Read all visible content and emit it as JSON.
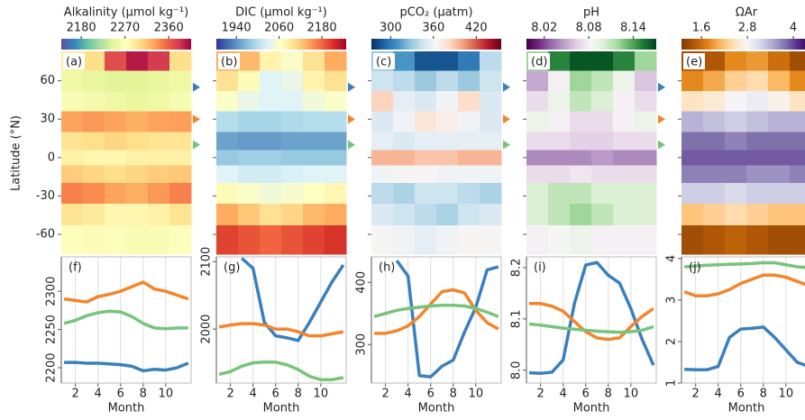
{
  "y_label": "Latitude (°N)",
  "x_label": "Month",
  "markers": [
    {
      "color": "#3a80bd",
      "value": 55
    },
    {
      "color": "#f4852a",
      "value": 30
    },
    {
      "color": "#78c47b",
      "value": 10
    }
  ],
  "chart_data": [
    {
      "type": "heatmap",
      "panel": "(a)",
      "title": "Alkalinity (μmol kg⁻¹)",
      "zlim": [
        2139,
        2406
      ],
      "zticks": [
        2180,
        2270,
        2360
      ],
      "colormap": [
        "#5e4fa2",
        "#3288bd",
        "#66c2a5",
        "#abdda4",
        "#e6f598",
        "#ffffbf",
        "#fee08b",
        "#fdae61",
        "#f46d43",
        "#d53e4f",
        "#9e0142"
      ],
      "x": [
        1,
        3,
        5,
        7,
        9,
        11
      ],
      "xlim": [
        0,
        12
      ],
      "y": [
        76,
        60,
        44,
        28,
        12,
        0,
        -12,
        -28,
        -44,
        -62
      ],
      "ylim": [
        -75.5,
        83
      ],
      "yticks": [
        60,
        30,
        0,
        -30,
        -60
      ],
      "z": [
        [
          2290,
          2300,
          2370,
          2395,
          2380,
          2300
        ],
        [
          2255,
          2250,
          2245,
          2245,
          2250,
          2255
        ],
        [
          2265,
          2260,
          2255,
          2250,
          2255,
          2262
        ],
        [
          2330,
          2335,
          2330,
          2325,
          2330,
          2332
        ],
        [
          2295,
          2300,
          2305,
          2300,
          2295,
          2295
        ],
        [
          2285,
          2280,
          2280,
          2285,
          2285,
          2285
        ],
        [
          2310,
          2305,
          2300,
          2305,
          2310,
          2312
        ],
        [
          2345,
          2340,
          2330,
          2325,
          2335,
          2345
        ],
        [
          2295,
          2290,
          2280,
          2280,
          2285,
          2295
        ],
        [
          2270,
          2275,
          2270,
          2265,
          2265,
          2270
        ]
      ]
    },
    {
      "type": "heatmap",
      "panel": "(b)",
      "title": "DIC (μmol kg⁻¹)",
      "zlim": [
        1884,
        2248
      ],
      "zticks": [
        1940,
        2060,
        2180
      ],
      "colormap": [
        "#313695",
        "#4575b4",
        "#74add1",
        "#abd9e9",
        "#e0f3f8",
        "#ffffbf",
        "#fee090",
        "#fdae61",
        "#f46d43",
        "#d73027",
        "#a50026"
      ],
      "x": [
        1,
        3,
        5,
        7,
        9,
        11
      ],
      "xlim": [
        0,
        12
      ],
      "y": [
        76,
        60,
        44,
        28,
        12,
        0,
        -12,
        -28,
        -44,
        -62
      ],
      "ylim": [
        -75.5,
        83
      ],
      "yticks": [
        60,
        30,
        0,
        -30,
        -60
      ],
      "z": [
        [
          2140,
          2130,
          2080,
          2060,
          2100,
          2140
        ],
        [
          2100,
          2070,
          2030,
          2040,
          2080,
          2100
        ],
        [
          2060,
          2040,
          2030,
          2030,
          2050,
          2060
        ],
        [
          2000,
          1990,
          1990,
          1995,
          2000,
          2000
        ],
        [
          1950,
          1945,
          1945,
          1950,
          1950,
          1950
        ],
        [
          1980,
          1985,
          1985,
          1980,
          1980,
          1980
        ],
        [
          2030,
          2020,
          2020,
          2025,
          2030,
          2030
        ],
        [
          2070,
          2060,
          2050,
          2055,
          2065,
          2075
        ],
        [
          2140,
          2120,
          2100,
          2110,
          2130,
          2140
        ],
        [
          2200,
          2190,
          2180,
          2190,
          2200,
          2210
        ]
      ]
    },
    {
      "type": "heatmap",
      "panel": "(c)",
      "title": "pCO₂ (μatm)",
      "zlim": [
        273,
        455
      ],
      "zticks": [
        300,
        360,
        420
      ],
      "colormap": [
        "#053061",
        "#2166ac",
        "#4393c3",
        "#92c5de",
        "#d1e5f0",
        "#f7f7f7",
        "#fddbc7",
        "#f4a582",
        "#d6604d",
        "#b2182b",
        "#67001f"
      ],
      "x": [
        1,
        3,
        5,
        7,
        9,
        11
      ],
      "xlim": [
        0,
        12
      ],
      "y": [
        76,
        60,
        44,
        28,
        12,
        0,
        -12,
        -28,
        -44,
        -62
      ],
      "ylim": [
        -75.5,
        83
      ],
      "yticks": [
        60,
        30,
        0,
        -30,
        -60
      ],
      "z": [
        [
          330,
          310,
          285,
          285,
          300,
          340
        ],
        [
          345,
          340,
          330,
          340,
          330,
          345
        ],
        [
          385,
          355,
          350,
          360,
          380,
          350
        ],
        [
          350,
          360,
          375,
          370,
          360,
          350
        ],
        [
          355,
          350,
          355,
          355,
          355,
          355
        ],
        [
          395,
          395,
          390,
          390,
          395,
          395
        ],
        [
          360,
          365,
          365,
          360,
          360,
          360
        ],
        [
          340,
          335,
          345,
          345,
          340,
          335
        ],
        [
          350,
          345,
          340,
          335,
          345,
          350
        ],
        [
          365,
          360,
          355,
          360,
          365,
          365
        ]
      ]
    },
    {
      "type": "heatmap",
      "panel": "(d)",
      "title": "pH",
      "zlim": [
        7.996,
        8.171
      ],
      "zticks": [
        8.02,
        8.08,
        8.14
      ],
      "colormap": [
        "#40004b",
        "#762a83",
        "#9970ab",
        "#c2a5cf",
        "#e7d4e8",
        "#f7f7f7",
        "#d9f0d3",
        "#a6dba0",
        "#5aae61",
        "#1b7837",
        "#00441b"
      ],
      "x": [
        1,
        3,
        5,
        7,
        9,
        11
      ],
      "xlim": [
        0,
        12
      ],
      "y": [
        76,
        60,
        44,
        28,
        12,
        0,
        -12,
        -28,
        -44,
        -62
      ],
      "ylim": [
        -75.5,
        83
      ],
      "yticks": [
        60,
        30,
        0,
        -30,
        -60
      ],
      "z": [
        [
          8.12,
          8.15,
          8.165,
          8.165,
          8.15,
          8.12
        ],
        [
          8.05,
          8.08,
          8.12,
          8.11,
          8.09,
          8.06
        ],
        [
          8.07,
          8.09,
          8.11,
          8.1,
          8.08,
          8.07
        ],
        [
          8.09,
          8.08,
          8.07,
          8.07,
          8.08,
          8.09
        ],
        [
          8.07,
          8.07,
          8.065,
          8.065,
          8.07,
          8.07
        ],
        [
          8.04,
          8.04,
          8.04,
          8.045,
          8.04,
          8.04
        ],
        [
          8.07,
          8.07,
          8.075,
          8.07,
          8.07,
          8.07
        ],
        [
          8.1,
          8.11,
          8.11,
          8.1,
          8.1,
          8.1
        ],
        [
          8.1,
          8.11,
          8.12,
          8.11,
          8.1,
          8.1
        ],
        [
          8.08,
          8.085,
          8.09,
          8.08,
          8.08,
          8.08
        ]
      ]
    },
    {
      "type": "heatmap",
      "panel": "(e)",
      "title": "ΩAr",
      "zlim": [
        1.08,
        4.47
      ],
      "zticks": [
        1.6,
        2.8,
        4.0
      ],
      "colormap": [
        "#7f3b08",
        "#b35806",
        "#e08214",
        "#fdb863",
        "#fee0b6",
        "#f7f7f7",
        "#d8daeb",
        "#b2abd2",
        "#8073ac",
        "#542788",
        "#2d004b"
      ],
      "x": [
        1,
        3,
        5,
        7,
        9,
        11
      ],
      "xlim": [
        0,
        12
      ],
      "y": [
        76,
        60,
        44,
        28,
        12,
        0,
        -12,
        -28,
        -44,
        -62
      ],
      "ylim": [
        -75.5,
        83
      ],
      "yticks": [
        60,
        30,
        0,
        -30,
        -60
      ],
      "z": [
        [
          1.3,
          1.4,
          1.8,
          1.9,
          1.6,
          1.3
        ],
        [
          1.8,
          2.0,
          2.3,
          2.4,
          2.1,
          1.8
        ],
        [
          2.5,
          2.6,
          2.8,
          2.9,
          2.7,
          2.5
        ],
        [
          3.4,
          3.3,
          3.2,
          3.3,
          3.4,
          3.4
        ],
        [
          3.8,
          3.8,
          3.7,
          3.8,
          3.8,
          3.8
        ],
        [
          3.9,
          3.9,
          3.9,
          3.9,
          3.9,
          3.9
        ],
        [
          3.7,
          3.7,
          3.7,
          3.6,
          3.6,
          3.7
        ],
        [
          3.2,
          3.2,
          3.1,
          3.2,
          3.2,
          3.2
        ],
        [
          2.2,
          2.3,
          2.4,
          2.3,
          2.2,
          2.2
        ],
        [
          1.3,
          1.4,
          1.5,
          1.4,
          1.3,
          1.3
        ]
      ]
    },
    {
      "type": "line",
      "panel": "(f)",
      "x": [
        1,
        2,
        3,
        4,
        5,
        6,
        7,
        8,
        9,
        10,
        11,
        12
      ],
      "xlim": [
        0.75,
        12.25
      ],
      "xticks": [
        2,
        4,
        6,
        8,
        10
      ],
      "ylim": [
        2180,
        2345
      ],
      "yticks": [
        2200,
        2250,
        2300
      ],
      "grid": true,
      "series": [
        {
          "color": "#3a80bd",
          "values": [
            2207,
            2207,
            2206,
            2206,
            2205,
            2204,
            2202,
            2196,
            2198,
            2197,
            2200,
            2206
          ]
        },
        {
          "color": "#f4852a",
          "values": [
            2290,
            2288,
            2286,
            2293,
            2296,
            2300,
            2306,
            2312,
            2303,
            2300,
            2295,
            2290
          ]
        },
        {
          "color": "#78c47b",
          "values": [
            2258,
            2262,
            2268,
            2272,
            2274,
            2273,
            2267,
            2258,
            2252,
            2251,
            2252,
            2252
          ]
        }
      ]
    },
    {
      "type": "line",
      "panel": "(g)",
      "x": [
        1,
        2,
        3,
        4,
        5,
        6,
        7,
        8,
        9,
        10,
        11,
        12
      ],
      "xlim": [
        0.75,
        12.25
      ],
      "xticks": [
        2,
        4,
        6,
        8,
        10
      ],
      "ylim": [
        1920,
        2107
      ],
      "yticks": [
        2000,
        2100
      ],
      "grid": true,
      "series": [
        {
          "color": "#3a80bd",
          "values": [
            null,
            null,
            2105,
            2090,
            2010,
            1990,
            1987,
            1983,
            2010,
            2040,
            2070,
            2095
          ]
        },
        {
          "color": "#f4852a",
          "values": [
            2003,
            2006,
            2008,
            2008,
            2006,
            2000,
            2000,
            1996,
            1990,
            1990,
            1993,
            1996
          ]
        },
        {
          "color": "#78c47b",
          "values": [
            1933,
            1937,
            1945,
            1950,
            1951,
            1951,
            1947,
            1940,
            1930,
            1925,
            1925,
            1928
          ]
        }
      ]
    },
    {
      "type": "line",
      "panel": "(h)",
      "x": [
        1,
        2,
        3,
        4,
        5,
        6,
        7,
        8,
        9,
        10,
        11,
        12
      ],
      "xlim": [
        0.75,
        12.25
      ],
      "xticks": [
        2,
        4,
        6,
        8,
        10
      ],
      "ylim": [
        238,
        441
      ],
      "yticks": [
        300,
        400
      ],
      "grid": true,
      "series": [
        {
          "color": "#3a80bd",
          "values": [
            null,
            null,
            435,
            410,
            250,
            248,
            265,
            275,
            320,
            360,
            420,
            425
          ]
        },
        {
          "color": "#f4852a",
          "values": [
            318,
            318,
            322,
            330,
            345,
            365,
            385,
            388,
            383,
            355,
            335,
            325
          ]
        },
        {
          "color": "#78c47b",
          "values": [
            345,
            350,
            355,
            358,
            360,
            362,
            363,
            363,
            362,
            358,
            352,
            345
          ]
        }
      ]
    },
    {
      "type": "line",
      "panel": "(i)",
      "x": [
        1,
        2,
        3,
        4,
        5,
        6,
        7,
        8,
        9,
        10,
        11,
        12
      ],
      "xlim": [
        0.75,
        12.25
      ],
      "xticks": [
        2,
        4,
        6,
        8,
        10
      ],
      "ylim": [
        7.975,
        8.221
      ],
      "yticks": [
        {
          "value": 8,
          "label": "8.0"
        },
        8.1,
        8.2
      ],
      "grid": true,
      "series": [
        {
          "color": "#3a80bd",
          "values": [
            7.995,
            7.994,
            7.996,
            8.02,
            8.13,
            8.205,
            8.21,
            8.185,
            8.17,
            8.12,
            8.06,
            8.01
          ]
        },
        {
          "color": "#f4852a",
          "values": [
            8.13,
            8.13,
            8.125,
            8.115,
            8.095,
            8.075,
            8.063,
            8.06,
            8.063,
            8.085,
            8.105,
            8.12
          ]
        },
        {
          "color": "#78c47b",
          "values": [
            8.09,
            8.088,
            8.085,
            8.082,
            8.08,
            8.078,
            8.076,
            8.075,
            8.074,
            8.075,
            8.078,
            8.085
          ]
        }
      ]
    },
    {
      "type": "line",
      "panel": "(j)",
      "x": [
        1,
        2,
        3,
        4,
        5,
        6,
        7,
        8,
        9,
        10,
        11,
        12
      ],
      "xlim": [
        0.75,
        12.25
      ],
      "xticks": [
        2,
        4,
        6,
        8,
        10
      ],
      "ylim": [
        1,
        4.04
      ],
      "yticks": [
        1,
        2,
        3,
        4
      ],
      "grid": true,
      "series": [
        {
          "color": "#3a80bd",
          "values": [
            1.33,
            1.32,
            1.32,
            1.4,
            2.1,
            2.3,
            2.32,
            2.35,
            2.1,
            1.8,
            1.5,
            1.4
          ]
        },
        {
          "color": "#f4852a",
          "values": [
            3.2,
            3.1,
            3.1,
            3.15,
            3.25,
            3.4,
            3.5,
            3.6,
            3.6,
            3.55,
            3.45,
            3.35
          ]
        },
        {
          "color": "#78c47b",
          "values": [
            3.8,
            3.82,
            3.84,
            3.85,
            3.86,
            3.87,
            3.88,
            3.9,
            3.9,
            3.85,
            3.8,
            3.78
          ]
        }
      ]
    }
  ]
}
